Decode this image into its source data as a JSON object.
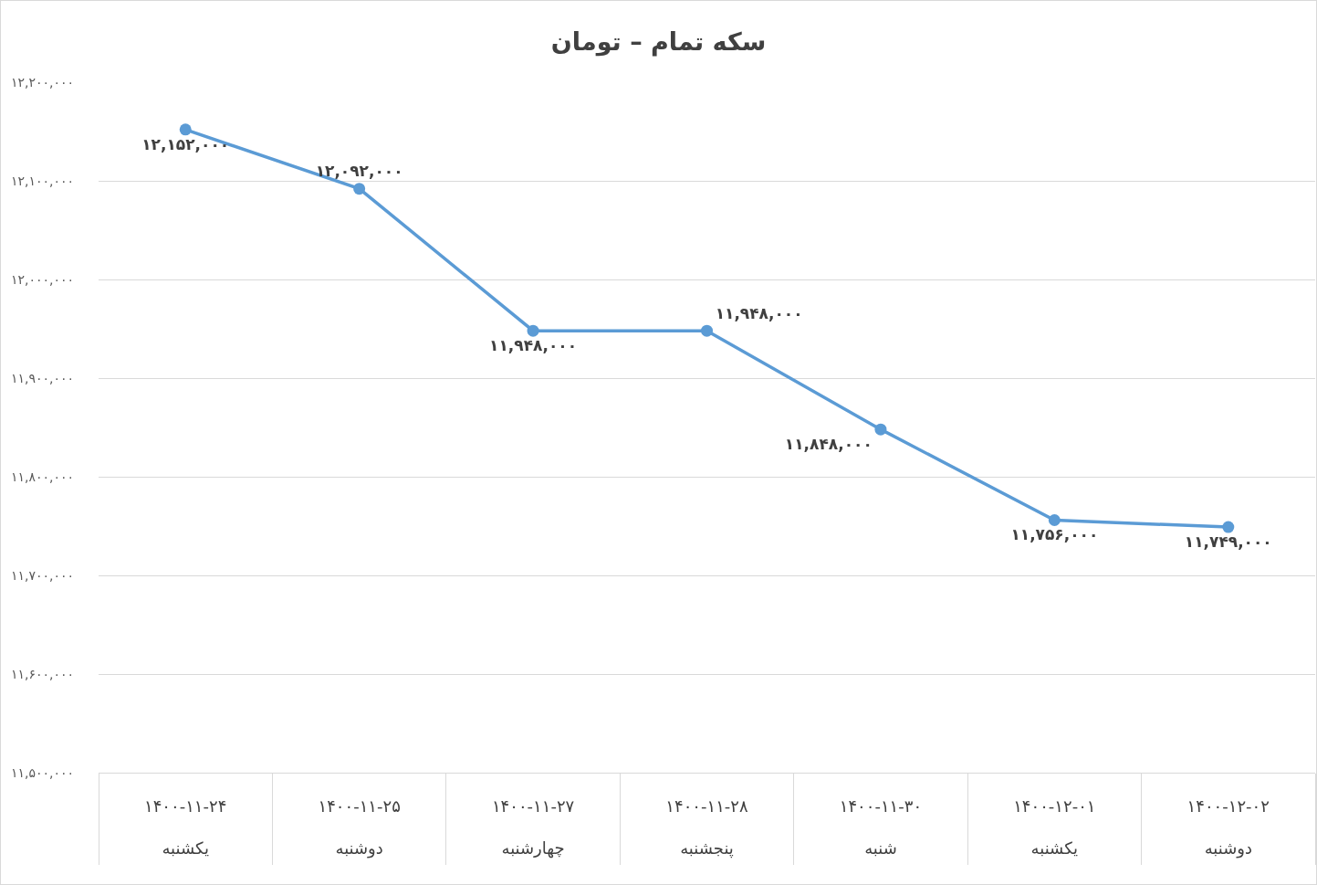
{
  "chart_data": {
    "type": "line",
    "title": "سکه تمام – تومان",
    "categories": [
      "۱۴۰۰-۱۱-۲۴\nیکشنبه",
      "۱۴۰۰-۱۱-۲۵\nدوشنبه",
      "۱۴۰۰-۱۱-۲۷\nچهارشنبه",
      "۱۴۰۰-۱۱-۲۸\nپنجشنبه",
      "۱۴۰۰-۱۱-۳۰\nشنبه",
      "۱۴۰۰-۱۲-۰۱\nیکشنبه",
      "۱۴۰۰-۱۲-۰۲\nدوشنبه"
    ],
    "values": [
      12152000,
      12092000,
      11948000,
      11948000,
      11848000,
      11756000,
      11749000
    ],
    "value_labels": [
      "۱۲,۱۵۲,۰۰۰",
      "۱۲,۰۹۲,۰۰۰",
      "۱۱,۹۴۸,۰۰۰",
      "۱۱,۹۴۸,۰۰۰",
      "۱۱,۸۴۸,۰۰۰",
      "۱۱,۷۵۶,۰۰۰",
      "۱۱,۷۴۹,۰۰۰"
    ],
    "color": "#5b9bd5",
    "marker": "circle",
    "line_style": "solid",
    "grid": "y",
    "ylim": [
      11500000,
      12200000
    ],
    "yticks": [
      {
        "value": 11500000,
        "label": "۱۱,۵۰۰,۰۰۰"
      },
      {
        "value": 11600000,
        "label": "۱۱,۶۰۰,۰۰۰"
      },
      {
        "value": 11700000,
        "label": "۱۱,۷۰۰,۰۰۰"
      },
      {
        "value": 11800000,
        "label": "۱۱,۸۰۰,۰۰۰"
      },
      {
        "value": 11900000,
        "label": "۱۱,۹۰۰,۰۰۰"
      },
      {
        "value": 12000000,
        "label": "۱۲,۰۰۰,۰۰۰"
      },
      {
        "value": 12100000,
        "label": "۱۲,۱۰۰,۰۰۰"
      },
      {
        "value": 12200000,
        "label": "۱۲,۲۰۰,۰۰۰"
      }
    ]
  }
}
